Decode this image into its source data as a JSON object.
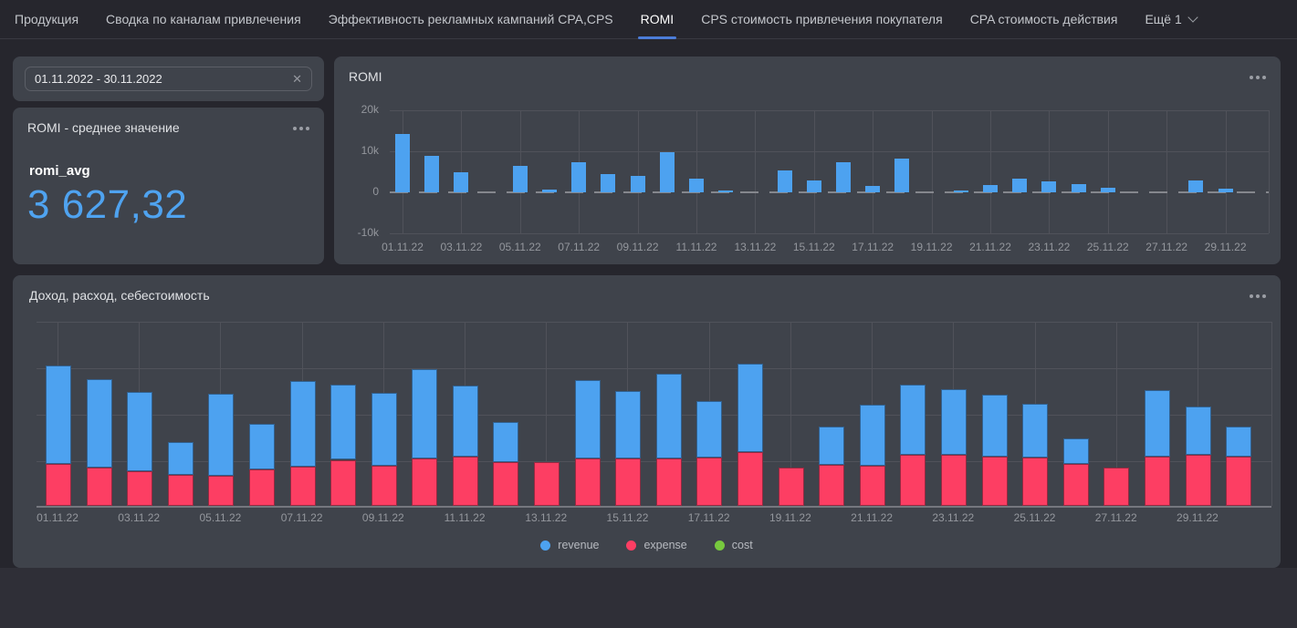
{
  "colors": {
    "page_bg": "#26262d",
    "footer_bg": "#2f2f37",
    "panel_bg": "#3f434b",
    "tab_active_underline": "#4c7dd9",
    "metric_value_blue": "#4fa3f0",
    "bar_blue": "#4da2f0",
    "bar_red": "#fd3e63",
    "bar_green": "#77c93e",
    "gridline": "#50525a",
    "text_primary": "#e9eaec",
    "text_secondary": "#94979d"
  },
  "tab_bar": {
    "tabs": [
      {
        "id": "products",
        "label": "Продукция",
        "active": false
      },
      {
        "id": "channels-summary",
        "label": "Сводка по каналам привлечения",
        "active": false
      },
      {
        "id": "campaign-effectiveness",
        "label": "Эффективность рекламных кампаний CPA,CPS",
        "active": false
      },
      {
        "id": "romi",
        "label": "ROMI",
        "active": true
      },
      {
        "id": "cps-customer-acquisition-cost",
        "label": "CPS стоимость привлечения покупателя",
        "active": false
      },
      {
        "id": "cpa-action-cost",
        "label": "CPA стоимость действия",
        "active": false
      },
      {
        "id": "more",
        "label": "Ещё 1",
        "active": false,
        "chevron": true
      }
    ]
  },
  "filter": {
    "value": "01.11.2022 - 30.11.2022",
    "clear_icon": "x-close"
  },
  "metric_card": {
    "title": "ROMI - среднее значение",
    "menu_icon": "ellipsis-menu",
    "metric_label": "romi_avg",
    "metric_value": "3 627,32"
  },
  "chart_data": [
    {
      "type": "bar",
      "title": "ROMI",
      "categories": [
        "01.11.22",
        "02.11.22",
        "03.11.22",
        "04.11.22",
        "05.11.22",
        "06.11.22",
        "07.11.22",
        "08.11.22",
        "09.11.22",
        "10.11.22",
        "11.11.22",
        "12.11.22",
        "13.11.22",
        "14.11.22",
        "15.11.22",
        "16.11.22",
        "17.11.22",
        "18.11.22",
        "19.11.22",
        "20.11.22",
        "21.11.22",
        "22.11.22",
        "23.11.22",
        "24.11.22",
        "25.11.22",
        "26.11.22",
        "27.11.22",
        "28.11.22",
        "29.11.22",
        "30.11.22"
      ],
      "values": [
        14.2,
        8.9,
        4.9,
        null,
        6.4,
        0.6,
        7.4,
        4.4,
        4.0,
        9.8,
        3.4,
        0.3,
        null,
        5.3,
        2.9,
        7.4,
        1.5,
        8.3,
        null,
        0.2,
        1.7,
        3.4,
        2.7,
        2.1,
        1.1,
        null,
        null,
        3.0,
        0.8,
        0
      ],
      "values_unit": "thousands (k)",
      "ytick_labels": [
        "20k",
        "10k",
        "0",
        "-10k"
      ],
      "ytick_values": [
        20,
        10,
        0,
        -10
      ],
      "ylim": [
        -10,
        20
      ],
      "xtick_every": 2,
      "grid": true,
      "bar_color": "#4da2f0"
    },
    {
      "type": "stacked-bar",
      "title": "Доход, расход, себестоимость",
      "categories": [
        "01.11.22",
        "02.11.22",
        "03.11.22",
        "04.11.22",
        "05.11.22",
        "06.11.22",
        "07.11.22",
        "08.11.22",
        "09.11.22",
        "10.11.22",
        "11.11.22",
        "12.11.22",
        "13.11.22",
        "14.11.22",
        "15.11.22",
        "16.11.22",
        "17.11.22",
        "18.11.22",
        "19.11.22",
        "20.11.22",
        "21.11.22",
        "22.11.22",
        "23.11.22",
        "24.11.22",
        "25.11.22",
        "26.11.22",
        "27.11.22",
        "28.11.22",
        "29.11.22",
        "30.11.22"
      ],
      "series": [
        {
          "name": "revenue",
          "color": "#4da2f0",
          "values": [
            21.2,
            19.2,
            17.2,
            7.0,
            17.8,
            9.8,
            18.6,
            16.4,
            15.8,
            19.6,
            15.6,
            8.6,
            0,
            17.2,
            14.8,
            18.6,
            12.4,
            19.2,
            0,
            8.2,
            13.2,
            15.4,
            14.4,
            13.6,
            11.8,
            5.4,
            0,
            14.6,
            10.6,
            6.6
          ]
        },
        {
          "name": "expense",
          "color": "#fd3e63",
          "values": [
            9.2,
            8.4,
            7.6,
            6.8,
            6.6,
            8.0,
            8.6,
            10.0,
            8.8,
            10.2,
            10.6,
            9.6,
            9.6,
            10.2,
            10.2,
            10.2,
            10.4,
            11.6,
            8.4,
            9.0,
            8.8,
            11.0,
            11.0,
            10.6,
            10.4,
            9.2,
            8.4,
            10.6,
            11.0,
            10.6
          ]
        },
        {
          "name": "cost",
          "color": "#77c93e",
          "values": [
            0,
            0,
            0,
            0,
            0,
            0,
            0,
            0,
            0,
            0,
            0,
            0,
            0,
            0,
            0,
            0,
            0,
            0,
            0,
            0,
            0,
            0,
            0,
            0,
            0,
            0,
            0,
            0,
            0,
            0
          ]
        }
      ],
      "stack_order": [
        "expense",
        "revenue",
        "cost"
      ],
      "ylim": [
        0,
        40
      ],
      "y_axis_labels_shown": false,
      "units_note": "relative units estimated from unlabeled gridlines; one gridline spacing = 10",
      "xtick_every": 2,
      "grid": true,
      "legend": [
        "revenue",
        "expense",
        "cost"
      ],
      "legend_position": "bottom"
    }
  ]
}
